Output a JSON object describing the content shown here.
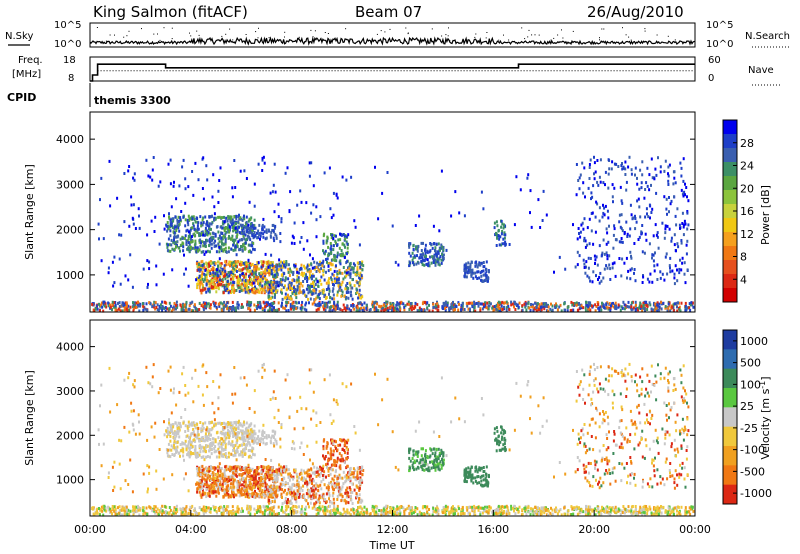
{
  "header": {
    "station": "King Salmon (fitACF)",
    "beam": "Beam 07",
    "date": "26/Aug/2010"
  },
  "strip_labels": {
    "nsky": "N.Sky",
    "nsearch": "N.Search",
    "freq_line1": "Freq.",
    "freq_line2": "[MHz]",
    "nave": "Nave",
    "cpid": "CPID",
    "cpid_value": "themis 3300"
  },
  "chart_data": [
    {
      "type": "line",
      "name": "noise-panel",
      "y_ticks_left": [
        "10^5",
        "10^0"
      ],
      "y_ticks_right": [
        "10^5",
        "10^0"
      ],
      "left_label": "N.Sky",
      "right_label": "N.Search"
    },
    {
      "type": "line",
      "name": "freq-nave-panel",
      "left_ylim": [
        8,
        18
      ],
      "left_ticks": [
        "18",
        "8"
      ],
      "right_ylim": [
        0,
        60
      ],
      "right_ticks": [
        "60",
        "0"
      ],
      "freq_steps": [
        {
          "x": 0.0,
          "y": 8.0
        },
        {
          "x": 0.1,
          "y": 8.0
        },
        {
          "x": 0.1,
          "y": 10.5
        },
        {
          "x": 0.3,
          "y": 10.5
        },
        {
          "x": 0.3,
          "y": 15.0
        },
        {
          "x": 3.0,
          "y": 15.0
        },
        {
          "x": 3.0,
          "y": 13.5
        },
        {
          "x": 17.0,
          "y": 13.5
        },
        {
          "x": 17.0,
          "y": 15.0
        },
        {
          "x": 24.0,
          "y": 15.0
        }
      ],
      "nave_level": 13.5
    },
    {
      "type": "heatmap",
      "name": "power-panel",
      "ylabel": "Slant Range [km]",
      "yticks": [
        1000,
        2000,
        3000,
        4000
      ],
      "ylim": [
        180,
        4600
      ],
      "xlim": [
        0,
        24
      ],
      "colorbar_label": "Power [dB]",
      "colorbar_ticks": [
        "4",
        "8",
        "12",
        "16",
        "20",
        "24",
        "28"
      ],
      "colorbar_colors": [
        "#0000ee",
        "#1e3fc8",
        "#3a5fb0",
        "#3c8f66",
        "#5aa640",
        "#8cc43c",
        "#c8d23c",
        "#f0c814",
        "#f5a01e",
        "#f07814",
        "#e6501e",
        "#dc2814",
        "#d20000"
      ]
    },
    {
      "type": "heatmap",
      "name": "velocity-panel",
      "ylabel": "Slant Range [km]",
      "yticks": [
        1000,
        2000,
        3000,
        4000
      ],
      "ylim": [
        180,
        4600
      ],
      "xlim": [
        0,
        24
      ],
      "xlabel": "Time UT",
      "xticks": [
        "00:00",
        "04:00",
        "08:00",
        "12:00",
        "16:00",
        "20:00",
        "00:00"
      ],
      "colorbar_label": "Velocity [m s",
      "colorbar_label_exp": "-1",
      "colorbar_label_end": "]",
      "colorbar_ticks": [
        "1000",
        "500",
        "100",
        "25",
        "-25",
        "-100",
        "-500",
        "-1000"
      ],
      "colorbar_colors": [
        "#1e3ca0",
        "#2e6cb0",
        "#3c8a5a",
        "#5ac840",
        "#c8c8c8",
        "#f0c83c",
        "#f0a020",
        "#f07814",
        "#dc2814"
      ]
    }
  ]
}
